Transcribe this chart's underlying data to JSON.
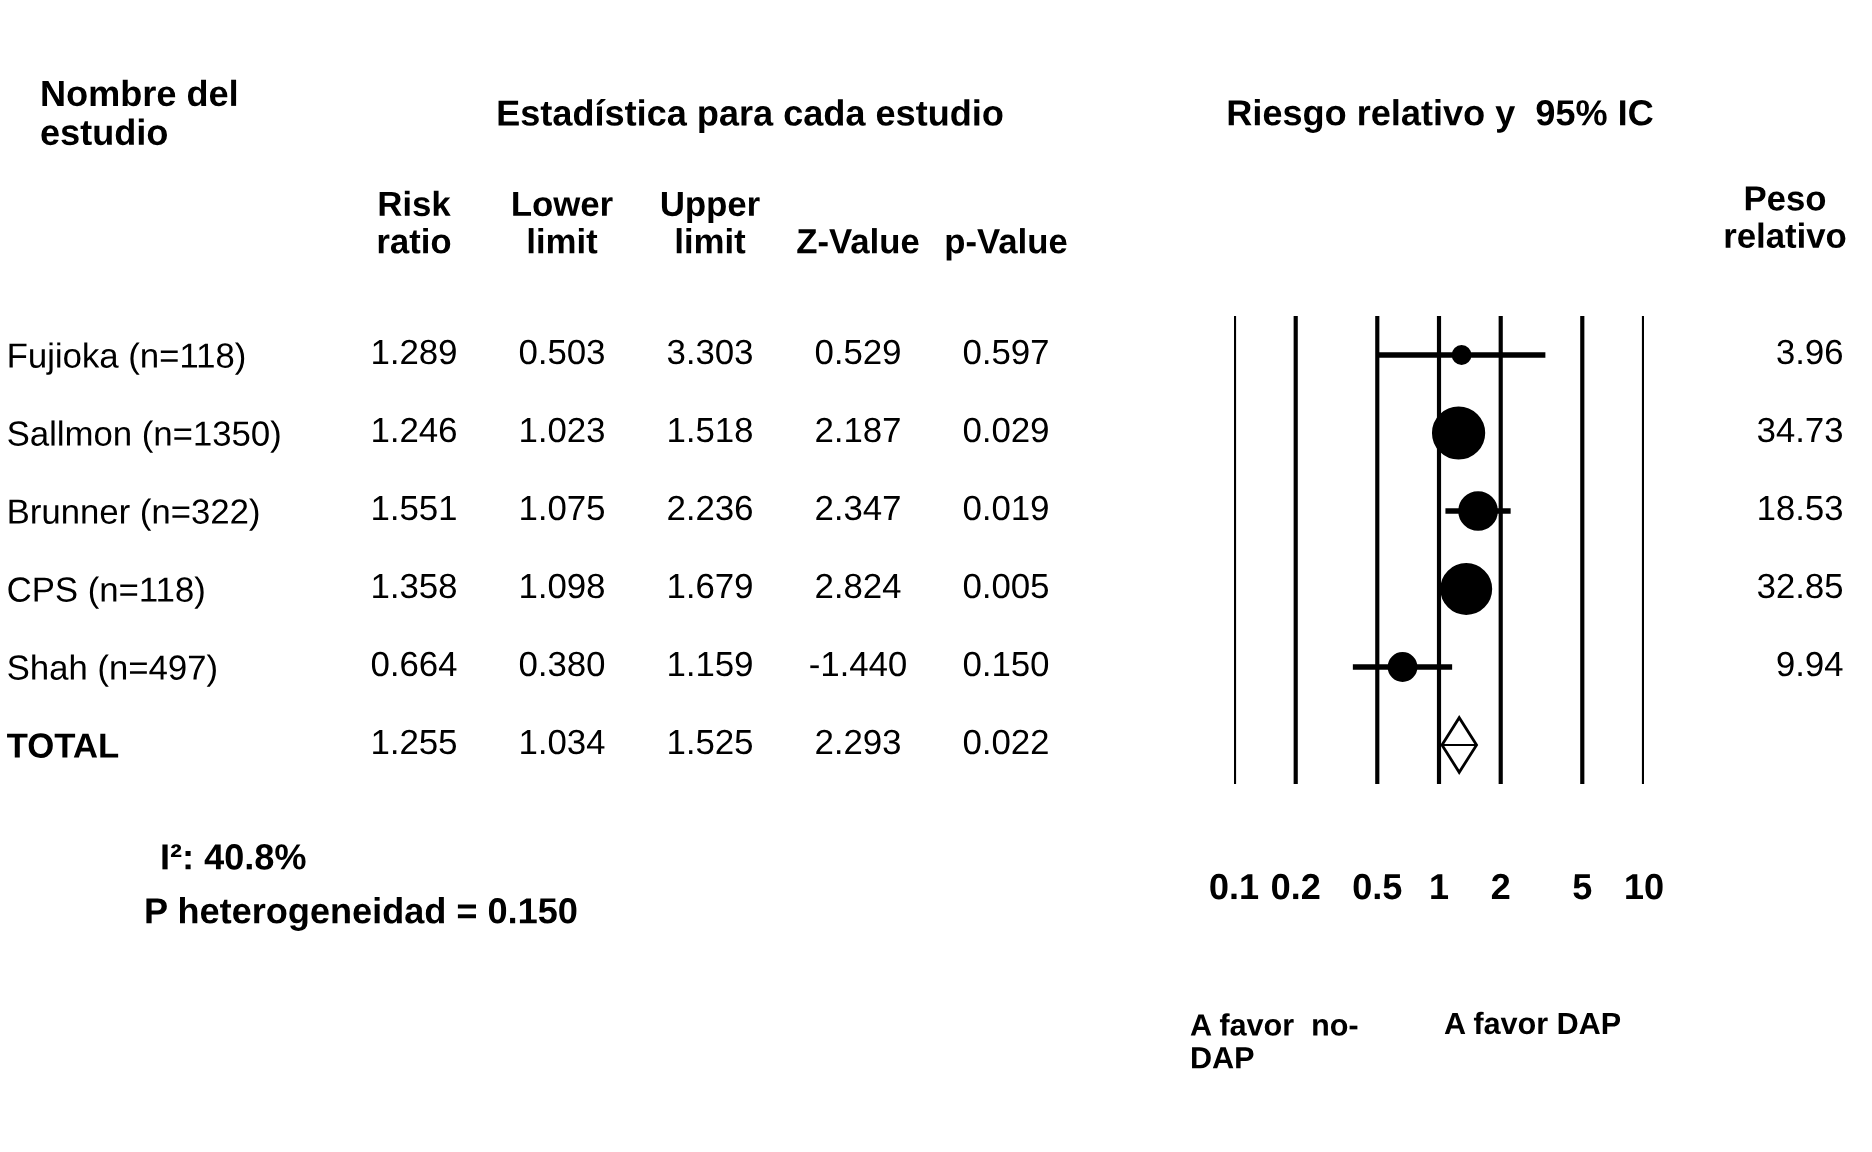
{
  "chart_data": [
    {
      "type": "other",
      "title": "Estadística para cada estudio",
      "ylabel": "Nombre del\nestudio",
      "categories": [
        "Risk\nratio",
        "Lower\nlimit",
        "Upper\nlimit",
        "Z-Value",
        "p-Value"
      ],
      "y_categories": [
        "Fujioka (n=118)",
        "Sallmon (n=1350)",
        "Brunner (n=322)",
        "CPS (n=118)",
        "Shah (n=497)",
        "TOTAL"
      ],
      "cell_labels": [
        [
          "1.289",
          "0.503",
          "3.303",
          "0.529",
          "0.597"
        ],
        [
          "1.246",
          "1.023",
          "1.518",
          "2.187",
          "0.029"
        ],
        [
          "1.551",
          "1.075",
          "2.236",
          "2.347",
          "0.019"
        ],
        [
          "1.358",
          "1.098",
          "1.679",
          "2.824",
          "0.005"
        ],
        [
          "0.664",
          "0.380",
          "1.159",
          "-1.440",
          "0.150"
        ],
        [
          "1.255",
          "1.034",
          "1.525",
          "2.293",
          "0.022"
        ]
      ],
      "annotations": [
        "I²: 40.8%",
        "P heterogeneidad = 0.150"
      ]
    },
    {
      "type": "bubble",
      "title": "Riesgo relativo y  95% IC",
      "orientation": "horizontal",
      "log": "x",
      "categories": [
        null,
        null,
        null,
        null,
        null,
        null
      ],
      "series": [
        {
          "color": "#000000",
          "marker": "circle",
          "values": [
            1.289,
            1.246,
            1.551,
            1.358,
            0.664,
            null
          ],
          "errors": [
            [
              0.503,
              3.303
            ],
            null,
            [
              1.075,
              2.236
            ],
            null,
            [
              0.38,
              1.159
            ],
            null
          ],
          "sizes": [
            0.114,
            1,
            0.534,
            0.946,
            0.286,
            null
          ]
        },
        {
          "type": "scatter",
          "color": "#000000",
          "marker": "diamond",
          "values": [
            null,
            null,
            null,
            null,
            null,
            1.255
          ],
          "errors": [
            null,
            null,
            null,
            null,
            null,
            [
              1.034,
              1.525
            ]
          ]
        }
      ],
      "xlim": [
        0.1,
        10
      ],
      "xticks": [
        0.1,
        0.2,
        0.5,
        1,
        2,
        5,
        10
      ],
      "grid": "x",
      "annotations": [
        "A favor  no-\nDAP",
        "A favor DAP"
      ]
    },
    {
      "type": "other",
      "categories": [
        "Peso\nrelativo"
      ],
      "cell_labels": [
        [
          "3.96"
        ],
        [
          "34.73"
        ],
        [
          "18.53"
        ],
        [
          "32.85"
        ],
        [
          "9.94"
        ]
      ]
    }
  ]
}
